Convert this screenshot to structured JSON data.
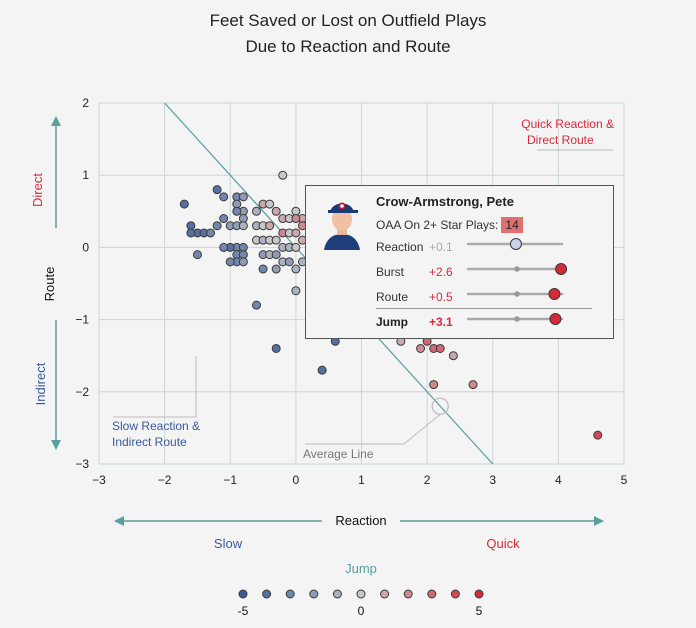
{
  "title": {
    "line1": "Feet Saved or Lost on Outfield Plays",
    "line2": "Due to Reaction and Route"
  },
  "chart_data": {
    "type": "scatter",
    "xlabel": "Reaction",
    "ylabel": "Route",
    "xlim": [
      -3,
      5
    ],
    "ylim": [
      -3,
      2
    ],
    "x_ticks": [
      "−3",
      "−2",
      "−1",
      "0",
      "1",
      "2",
      "3",
      "4",
      "5"
    ],
    "y_ticks": [
      "2",
      "1",
      "0",
      "−1",
      "−2",
      "−3"
    ],
    "grid": true,
    "average_line": {
      "from": [
        -2,
        2
      ],
      "to": [
        3,
        -3
      ]
    },
    "points": [
      {
        "x": -1.7,
        "y": 0.6,
        "jump": -4
      },
      {
        "x": -1.6,
        "y": 0.3,
        "jump": -4
      },
      {
        "x": -1.5,
        "y": 0.2,
        "jump": -4
      },
      {
        "x": -1.4,
        "y": 0.2,
        "jump": -4
      },
      {
        "x": -1.3,
        "y": 0.2,
        "jump": -3
      },
      {
        "x": -1.6,
        "y": 0.2,
        "jump": -4
      },
      {
        "x": -1.5,
        "y": -0.1,
        "jump": -3
      },
      {
        "x": -1.2,
        "y": 0.8,
        "jump": -4
      },
      {
        "x": -1.1,
        "y": 0.7,
        "jump": -3
      },
      {
        "x": -1.2,
        "y": 0.3,
        "jump": -3
      },
      {
        "x": -1.1,
        "y": 0.4,
        "jump": -3
      },
      {
        "x": -1.0,
        "y": 0.3,
        "jump": -2
      },
      {
        "x": -0.9,
        "y": 0.7,
        "jump": -3
      },
      {
        "x": -0.8,
        "y": 0.7,
        "jump": -2
      },
      {
        "x": -0.9,
        "y": 0.6,
        "jump": -2
      },
      {
        "x": -0.8,
        "y": 0.5,
        "jump": -2
      },
      {
        "x": -0.9,
        "y": 0.5,
        "jump": -3
      },
      {
        "x": -0.8,
        "y": 0.4,
        "jump": -2
      },
      {
        "x": -0.9,
        "y": 0.3,
        "jump": -2
      },
      {
        "x": -0.8,
        "y": 0.3,
        "jump": -1
      },
      {
        "x": -0.9,
        "y": 0.0,
        "jump": -3
      },
      {
        "x": -0.8,
        "y": 0.0,
        "jump": -3
      },
      {
        "x": -0.9,
        "y": -0.1,
        "jump": -3
      },
      {
        "x": -0.8,
        "y": -0.1,
        "jump": -3
      },
      {
        "x": -0.9,
        "y": -0.2,
        "jump": -3
      },
      {
        "x": -0.8,
        "y": -0.2,
        "jump": -2
      },
      {
        "x": -1.0,
        "y": 0.0,
        "jump": -4
      },
      {
        "x": -1.0,
        "y": -0.2,
        "jump": -3
      },
      {
        "x": -1.1,
        "y": 0.0,
        "jump": -3
      },
      {
        "x": -0.6,
        "y": 0.5,
        "jump": -1
      },
      {
        "x": -0.5,
        "y": 0.6,
        "jump": 1
      },
      {
        "x": -0.4,
        "y": 0.6,
        "jump": 0
      },
      {
        "x": -0.6,
        "y": 0.3,
        "jump": -1
      },
      {
        "x": -0.5,
        "y": 0.3,
        "jump": 0
      },
      {
        "x": -0.4,
        "y": 0.3,
        "jump": 1
      },
      {
        "x": -0.6,
        "y": 0.1,
        "jump": 0
      },
      {
        "x": -0.5,
        "y": 0.1,
        "jump": -1
      },
      {
        "x": -0.4,
        "y": 0.1,
        "jump": 0
      },
      {
        "x": -0.3,
        "y": 0.1,
        "jump": 0
      },
      {
        "x": -0.5,
        "y": -0.1,
        "jump": -2
      },
      {
        "x": -0.4,
        "y": -0.1,
        "jump": -1
      },
      {
        "x": -0.3,
        "y": -0.1,
        "jump": -2
      },
      {
        "x": -0.5,
        "y": -0.3,
        "jump": -3
      },
      {
        "x": -0.3,
        "y": -0.3,
        "jump": -2
      },
      {
        "x": -0.6,
        "y": -0.8,
        "jump": -3
      },
      {
        "x": -0.3,
        "y": 0.5,
        "jump": 1
      },
      {
        "x": -0.2,
        "y": 0.4,
        "jump": 1
      },
      {
        "x": -0.1,
        "y": 0.4,
        "jump": 0
      },
      {
        "x": -0.2,
        "y": 0.2,
        "jump": 2
      },
      {
        "x": -0.1,
        "y": 0.2,
        "jump": 0
      },
      {
        "x": -0.2,
        "y": 0.0,
        "jump": -1
      },
      {
        "x": -0.1,
        "y": 0.0,
        "jump": -1
      },
      {
        "x": -0.2,
        "y": -0.2,
        "jump": -1
      },
      {
        "x": -0.1,
        "y": -0.2,
        "jump": -2
      },
      {
        "x": -0.2,
        "y": 1.0,
        "jump": 0
      },
      {
        "x": 0.0,
        "y": 0.5,
        "jump": 0
      },
      {
        "x": 0.1,
        "y": 0.4,
        "jump": 1
      },
      {
        "x": 0.0,
        "y": 0.4,
        "jump": 2
      },
      {
        "x": 0.1,
        "y": 0.3,
        "jump": 2
      },
      {
        "x": 0.0,
        "y": 0.2,
        "jump": 1
      },
      {
        "x": 0.1,
        "y": 0.1,
        "jump": 1
      },
      {
        "x": 0.0,
        "y": 0.0,
        "jump": 0
      },
      {
        "x": 0.0,
        "y": -0.3,
        "jump": -1
      },
      {
        "x": 0.1,
        "y": -0.2,
        "jump": -1
      },
      {
        "x": 0.0,
        "y": -0.6,
        "jump": -1
      },
      {
        "x": -0.3,
        "y": -1.4,
        "jump": -4
      },
      {
        "x": 0.4,
        "y": -1.7,
        "jump": -4
      },
      {
        "x": 0.6,
        "y": -1.3,
        "jump": -4
      },
      {
        "x": 1.6,
        "y": -1.3,
        "jump": 1
      },
      {
        "x": 1.9,
        "y": -1.4,
        "jump": 2
      },
      {
        "x": 2.0,
        "y": -1.3,
        "jump": 3
      },
      {
        "x": 2.1,
        "y": -1.4,
        "jump": 3
      },
      {
        "x": 2.2,
        "y": -1.4,
        "jump": 3
      },
      {
        "x": 2.4,
        "y": -1.5,
        "jump": 1
      },
      {
        "x": 2.1,
        "y": -1.9,
        "jump": 2
      },
      {
        "x": 2.7,
        "y": -1.9,
        "jump": 2
      },
      {
        "x": 4.6,
        "y": -2.6,
        "jump": 4
      }
    ],
    "average_marker": {
      "x": 2.2,
      "y": -2.2
    },
    "annotations": {
      "quick_direct": [
        "Quick Reaction &",
        "Direct Route"
      ],
      "slow_indirect": [
        "Slow Reaction &",
        "Indirect Route"
      ],
      "average_line": "Average Line"
    },
    "y_arrows": {
      "top": "Direct",
      "bottom": "Indirect"
    },
    "x_arrows": {
      "left": "Slow",
      "right": "Quick"
    },
    "legend": {
      "title": "Jump",
      "values": [
        -5,
        -4,
        -3,
        -2,
        -1,
        0,
        1,
        2,
        3,
        4,
        5
      ],
      "labels": [
        "-5",
        "0",
        "5"
      ]
    }
  },
  "colors": {
    "slow": "#3b5a9a",
    "quick": "#d62a3a",
    "teal": "#5a9e9e",
    "grid": "#c9d6d6"
  },
  "tooltip": {
    "name": "Crow-Armstrong, Pete",
    "oaa_label": "OAA On 2+ Star Plays:",
    "oaa_value": "14",
    "rows": [
      {
        "label": "Reaction",
        "value": "+0.1",
        "fraction": 0.51,
        "style": "neutral"
      },
      {
        "label": "Burst",
        "value": "+2.6",
        "fraction": 0.99,
        "style": "good"
      },
      {
        "label": "Route",
        "value": "+0.5",
        "fraction": 0.92,
        "style": "good"
      },
      {
        "label": "Jump",
        "value": "+3.1",
        "fraction": 0.93,
        "style": "good"
      }
    ]
  }
}
